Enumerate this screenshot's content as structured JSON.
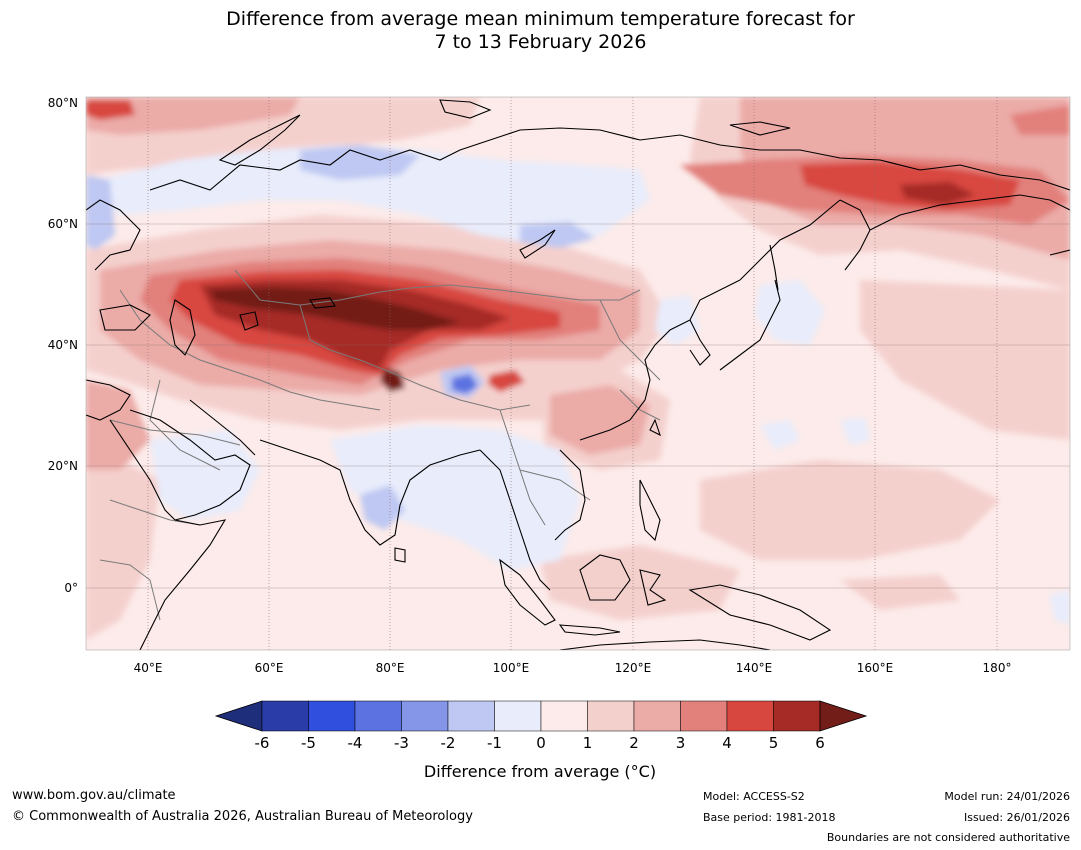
{
  "title": {
    "line1": "Difference from average mean minimum temperature forecast for",
    "line2": "7 to 13 February 2026"
  },
  "map": {
    "region": "Asia",
    "lat_labels": [
      "80°N",
      "60°N",
      "40°N",
      "20°N",
      "0°"
    ],
    "lon_labels": [
      "40°E",
      "60°E",
      "80°E",
      "100°E",
      "120°E",
      "140°E",
      "160°E",
      "180°"
    ]
  },
  "colorbar": {
    "ticks": [
      "-6",
      "-5",
      "-4",
      "-3",
      "-2",
      "-1",
      "0",
      "1",
      "2",
      "3",
      "4",
      "5",
      "6"
    ],
    "colors": [
      "#2a3ca8",
      "#304fde",
      "#5c72e0",
      "#8595e8",
      "#bec8f2",
      "#e8ecfb",
      "#fcebea",
      "#f4d0cd",
      "#ebaba7",
      "#e2807b",
      "#d8473f",
      "#a62a25"
    ],
    "extend_low_color": "#1f2e7a",
    "extend_high_color": "#731d19",
    "label": "Difference from average (°C)"
  },
  "footer": {
    "website": "www.bom.gov.au/climate",
    "copyright": "© Commonwealth of Australia 2026, Australian Bureau of Meteorology",
    "model": "Model: ACCESS-S2",
    "base_period": "Base period: 1981-2018",
    "model_run": "Model run: 24/01/2026",
    "issued": "Issued: 26/01/2026",
    "disclaimer": "Boundaries are not considered authoritative"
  }
}
